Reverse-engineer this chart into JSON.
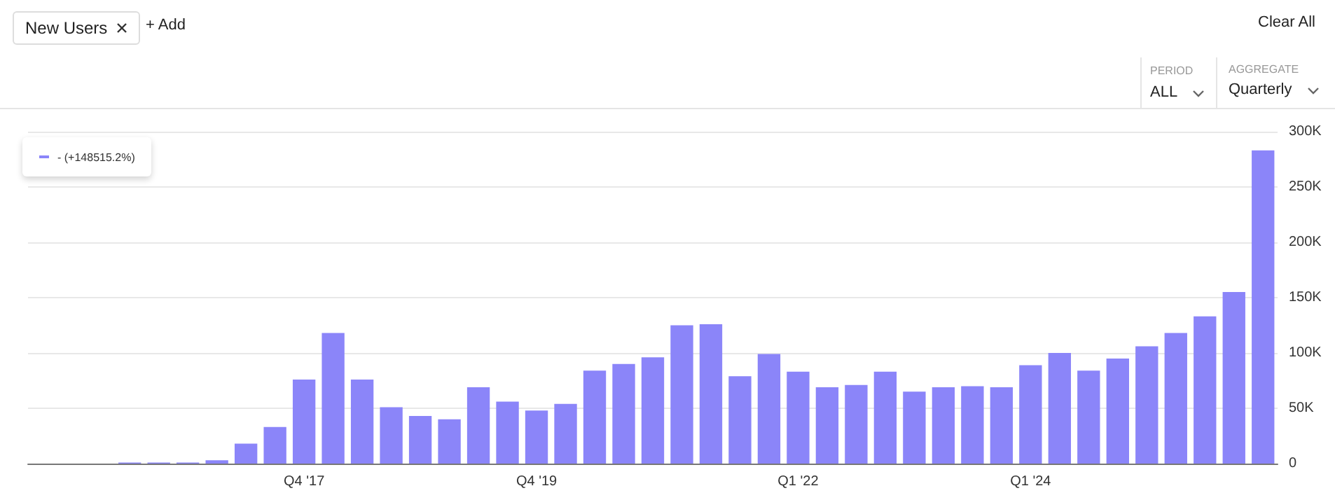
{
  "chart_data": {
    "type": "bar",
    "categories": [
      null,
      null,
      null,
      null,
      null,
      null,
      null,
      null,
      null,
      "Q4 '17",
      null,
      null,
      null,
      null,
      null,
      null,
      null,
      "Q4 '19",
      null,
      null,
      null,
      null,
      null,
      null,
      null,
      null,
      "Q1 '22",
      null,
      null,
      null,
      null,
      null,
      null,
      null,
      "Q1 '24",
      null,
      null,
      null,
      null,
      null,
      null,
      null,
      null
    ],
    "series": [
      {
        "color": "#8b85f9",
        "values": [
          0,
          0,
          0,
          1000,
          1000,
          1000,
          3000,
          18000,
          33000,
          76000,
          118000,
          76000,
          51000,
          43000,
          40000,
          69000,
          56000,
          48000,
          54000,
          84000,
          90000,
          96000,
          125000,
          126000,
          79000,
          99000,
          83000,
          69000,
          71000,
          83000,
          65000,
          69000,
          70000,
          69000,
          89000,
          100000,
          84000,
          95000,
          106000,
          118000,
          133000,
          155000,
          283000
        ]
      }
    ],
    "ylim": [
      0,
      300000
    ],
    "yticks": [
      {
        "value": 0,
        "label": "0"
      },
      {
        "value": 50000,
        "label": "50K"
      },
      {
        "value": 100000,
        "label": "100K"
      },
      {
        "value": 150000,
        "label": "150K"
      },
      {
        "value": 200000,
        "label": "200K"
      },
      {
        "value": 250000,
        "label": "250K"
      },
      {
        "value": 300000,
        "label": "300K"
      }
    ],
    "grid": "y",
    "annotations": [
      "New Users",
      "+ Add",
      "Clear All",
      "PERIOD",
      "ALL",
      "AGGREGATE",
      "Quarterly",
      "- (+148515.2%)"
    ]
  }
}
